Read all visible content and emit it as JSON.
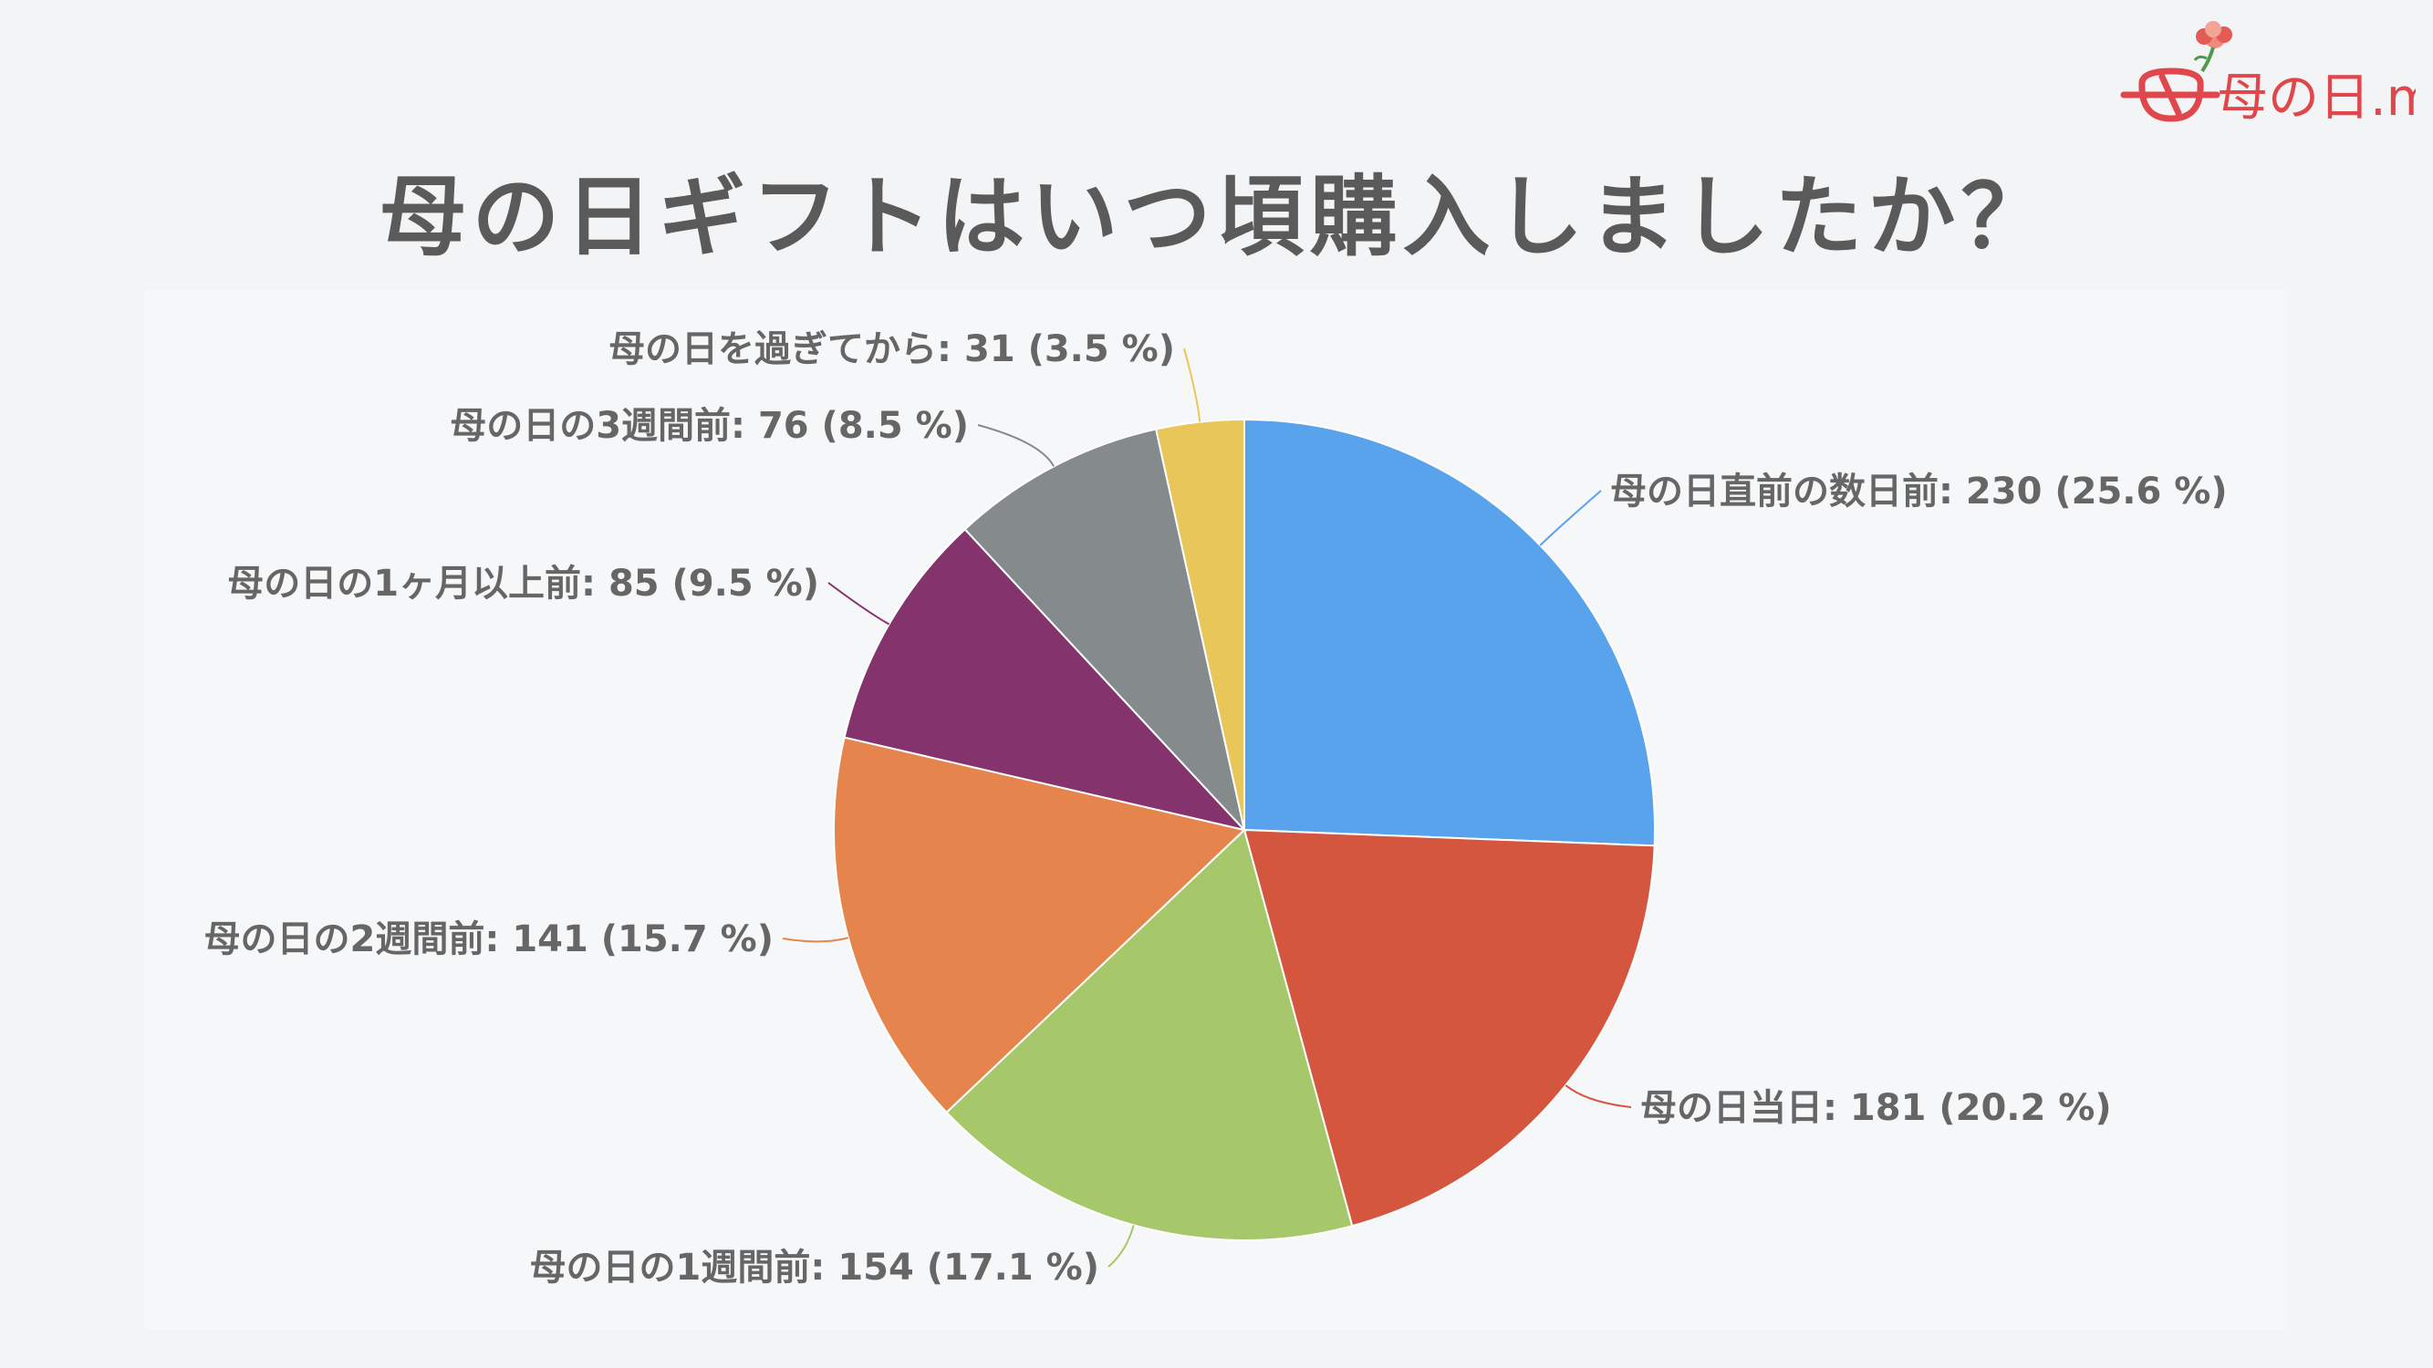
{
  "title": "母の日ギフトはいつ頃購入しましたか？",
  "logo": {
    "text": "母の日.me",
    "accent": "#e0474c"
  },
  "chart_data": {
    "type": "pie",
    "title": "母の日ギフトはいつ頃購入しましたか？",
    "start_angle_deg": 0,
    "direction": "clockwise",
    "slices": [
      {
        "label": "母の日直前の数日前",
        "value": 230,
        "percent": 25.6,
        "color": "#58a3ec"
      },
      {
        "label": "母の日当日",
        "value": 181,
        "percent": 20.2,
        "color": "#d4563e"
      },
      {
        "label": "母の日の1週間前",
        "value": 154,
        "percent": 17.1,
        "color": "#a6c76a"
      },
      {
        "label": "母の日の2週間前",
        "value": 141,
        "percent": 15.7,
        "color": "#e5854d"
      },
      {
        "label": "母の日の1ヶ月以上前",
        "value": 85,
        "percent": 9.5,
        "color": "#84336c"
      },
      {
        "label": "母の日の3週間前",
        "value": 76,
        "percent": 8.5,
        "color": "#858a8c"
      },
      {
        "label": "母の日を過ぎてから",
        "value": 31,
        "percent": 3.5,
        "color": "#e8c65a"
      }
    ],
    "labels_text": [
      "母の日直前の数日前: 230 (25.6 %)",
      "母の日当日: 181 (20.2 %)",
      "母の日の1週間前: 154 (17.1 %)",
      "母の日の2週間前: 141 (15.7 %)",
      "母の日の1ヶ月以上前: 85 (9.5 %)",
      "母の日の3週間前: 76 (8.5 %)",
      "母の日を過ぎてから: 31 (3.5 %)"
    ]
  }
}
